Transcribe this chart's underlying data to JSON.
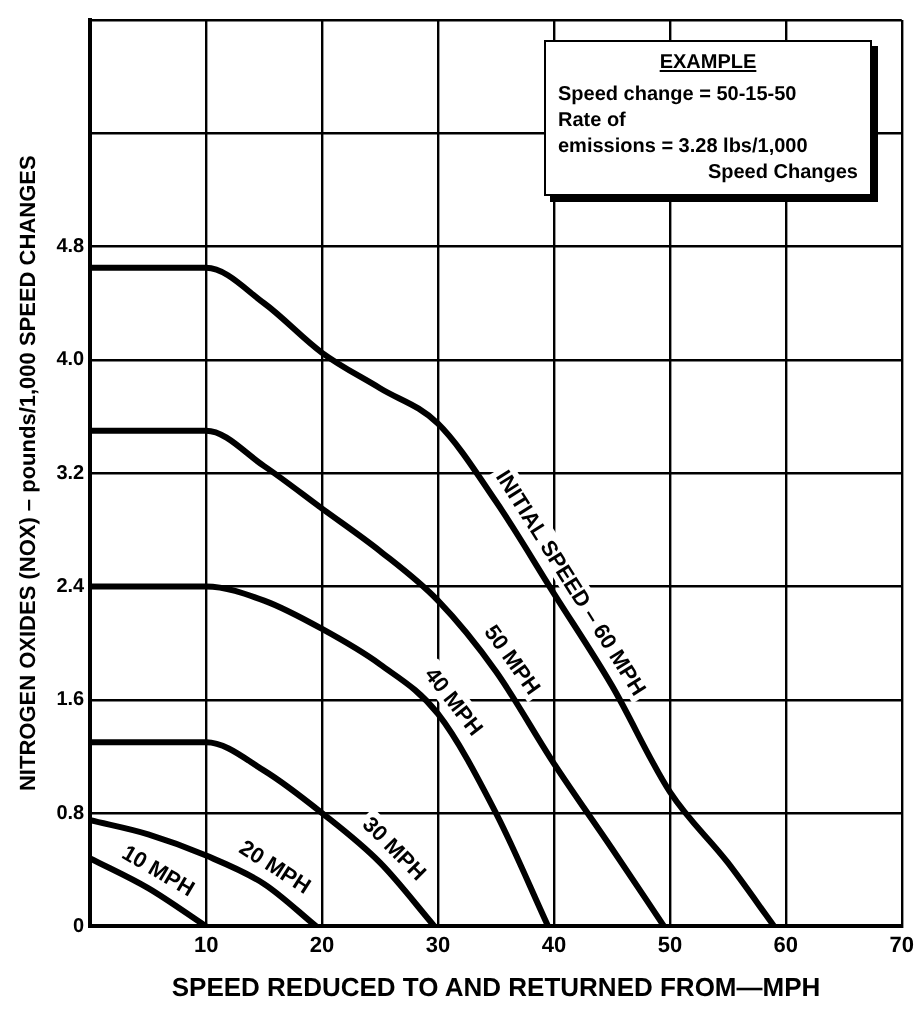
{
  "chart_data": {
    "type": "line",
    "xlabel": "SPEED REDUCED TO AND RETURNED FROM—MPH",
    "ylabel": "NITROGEN OXIDES (NOX) – pounds/1,000 SPEED CHANGES",
    "xlim": [
      0,
      70
    ],
    "xticks": [
      {
        "value": 0,
        "label": null
      },
      10,
      20,
      30,
      40,
      50,
      60,
      70
    ],
    "ylim": [
      0,
      6.4
    ],
    "yticks": [
      0,
      0.8,
      1.6,
      2.4,
      3.2,
      {
        "value": 4,
        "label": "4.0"
      },
      4.8,
      {
        "value": 5.6,
        "label": null
      },
      {
        "value": 6.4,
        "label": null
      }
    ],
    "grid": true,
    "legend": false,
    "marker": "none",
    "line_style": "solid",
    "annotations": [
      "EXAMPLE",
      "Speed change = 50-15-50",
      "Rate of",
      "emissions = 3.28 lbs/1,000",
      "Speed Changes"
    ],
    "series": [
      {
        "name": "INITIAL SPEED – 60 MPH",
        "color": "#000000",
        "x": [
          0,
          10,
          15,
          20,
          25,
          30,
          35,
          40,
          45,
          50,
          55,
          59
        ],
        "values": [
          4.65,
          4.65,
          4.4,
          4.05,
          3.8,
          3.55,
          3.0,
          2.35,
          1.7,
          0.95,
          0.45,
          0
        ]
      },
      {
        "name": "50 MPH",
        "color": "#000000",
        "x": [
          0,
          10,
          15,
          20,
          25,
          30,
          35,
          40,
          45,
          49.5
        ],
        "values": [
          3.5,
          3.5,
          3.25,
          2.95,
          2.65,
          2.3,
          1.8,
          1.15,
          0.55,
          0
        ]
      },
      {
        "name": "40 MPH",
        "color": "#000000",
        "x": [
          0,
          10,
          15,
          20,
          25,
          30,
          35,
          39.5
        ],
        "values": [
          2.4,
          2.4,
          2.3,
          2.1,
          1.85,
          1.5,
          0.8,
          0
        ]
      },
      {
        "name": "30 MPH",
        "color": "#000000",
        "x": [
          0,
          10,
          15,
          20,
          25,
          29.7
        ],
        "values": [
          1.3,
          1.3,
          1.1,
          0.8,
          0.45,
          0
        ]
      },
      {
        "name": "20 MPH",
        "color": "#000000",
        "x": [
          0,
          5,
          10,
          15,
          19.5
        ],
        "values": [
          0.75,
          0.65,
          0.5,
          0.3,
          0
        ]
      },
      {
        "name": "10 MPH",
        "color": "#000000",
        "x": [
          0,
          5,
          10
        ],
        "values": [
          0.48,
          0.27,
          0
        ]
      }
    ]
  }
}
